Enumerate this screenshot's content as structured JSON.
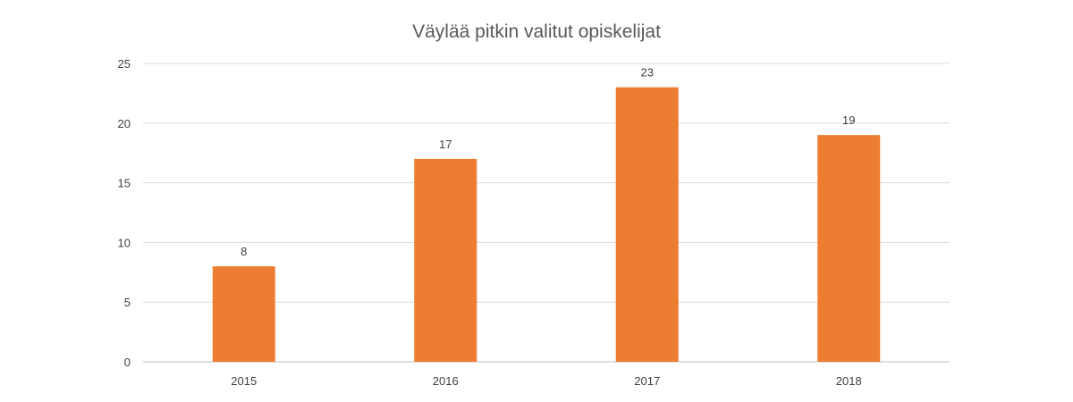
{
  "chart_data": {
    "type": "bar",
    "title": "Väylää pitkin valitut opiskelijat",
    "xlabel": "",
    "ylabel": "",
    "categories": [
      "2015",
      "2016",
      "2017",
      "2018"
    ],
    "values": [
      8,
      17,
      23,
      19
    ],
    "ylim": [
      0,
      25
    ],
    "yticks": [
      0,
      5,
      10,
      15,
      20,
      25
    ],
    "grid": true,
    "legend": "none",
    "bar_color": "#ED7D31",
    "data_labels": [
      "8",
      "17",
      "23",
      "19"
    ]
  }
}
